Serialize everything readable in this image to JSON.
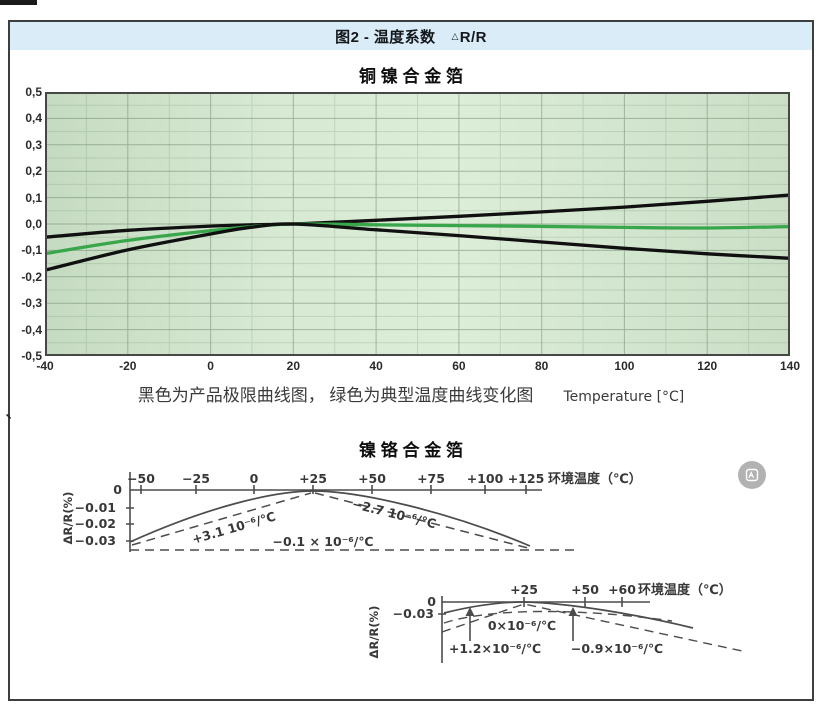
{
  "page": {
    "stray_mark": "、"
  },
  "header": {
    "title_prefix": "图2 - 温度系数",
    "delta": "△",
    "ratio": "R/R",
    "bg_color": "#d9ecf7"
  },
  "colors": {
    "panel_border": "#3e3e3e",
    "plot_green_bg": "#d6e8d2",
    "curve_black": "#101010",
    "curve_green": "#3aa64b",
    "sketch_ink": "#4c4c4c"
  },
  "chart_data": [
    {
      "type": "line",
      "title": "铜 镍 合 金 箔",
      "xlabel": "Temperature [°C]",
      "ylabel": "",
      "caption": "黑色为产品极限曲线图， 绿色为典型温度曲线变化图",
      "xlim": [
        -40,
        140
      ],
      "ylim": [
        -0.5,
        0.5
      ],
      "grid": true,
      "legend": "none",
      "x_ticks": [
        -40,
        -20,
        0,
        20,
        40,
        60,
        80,
        100,
        120,
        140
      ],
      "y_ticks": [
        0.5,
        0.4,
        0.3,
        0.2,
        0.1,
        0.0,
        -0.1,
        -0.2,
        -0.3,
        -0.4,
        -0.5
      ],
      "y_tick_labels": [
        "0,5",
        "0,4",
        "0,3",
        "0,2",
        "0,1",
        "0,0",
        "-0,1",
        "-0,2",
        "-0,3",
        "-0,4",
        "-0,5"
      ],
      "series": [
        {
          "id": "upper-limit",
          "name": "产品极限曲线(上)",
          "color": "#101010",
          "x": [
            -40,
            -20,
            0,
            10,
            20,
            40,
            60,
            80,
            100,
            120,
            140
          ],
          "y": [
            -0.05,
            -0.024,
            -0.008,
            -0.003,
            0,
            0.014,
            0.029,
            0.046,
            0.064,
            0.086,
            0.11
          ]
        },
        {
          "id": "typical",
          "name": "典型温度曲线",
          "color": "#3aa64b",
          "x": [
            -40,
            -20,
            0,
            10,
            20,
            40,
            60,
            80,
            100,
            120,
            140
          ],
          "y": [
            -0.112,
            -0.062,
            -0.025,
            -0.01,
            0,
            -0.003,
            -0.006,
            -0.009,
            -0.013,
            -0.015,
            -0.01
          ]
        },
        {
          "id": "lower-limit",
          "name": "产品极限曲线(下)",
          "color": "#101010",
          "x": [
            -40,
            -20,
            0,
            10,
            20,
            40,
            60,
            80,
            100,
            120,
            140
          ],
          "y": [
            -0.175,
            -0.098,
            -0.038,
            -0.012,
            0,
            -0.022,
            -0.044,
            -0.068,
            -0.092,
            -0.113,
            -0.13
          ]
        }
      ]
    },
    {
      "type": "line",
      "title": "镍 铬 合 金 箔",
      "style": "hand-drawn sketch",
      "subcharts": [
        {
          "xlabel": "环境温度（℃）",
          "ylabel": "ΔR/R(%)",
          "x_tick_labels": [
            "−50",
            "−25",
            "0",
            "+25",
            "+50",
            "+75",
            "+100",
            "+125"
          ],
          "y_tick_labels": [
            "0",
            "−0.01",
            "−0.02",
            "−0.03"
          ],
          "annotations": [
            "+3.1  10⁻⁶/℃",
            "−2.7  10⁻⁶/℃",
            "−0.1 × 10⁻⁶/℃"
          ],
          "shape": "solid arc from (−50,−0.03) peaking at (+25,0) back down to (+125,≈−0.03); dashed chords and dashed floor at −0.03"
        },
        {
          "xlabel": "环境温度（℃）",
          "ylabel": "ΔR/R(%)",
          "x_tick_labels": [
            "+25",
            "+50",
            "+60"
          ],
          "y_tick_labels": [
            "0",
            "−0.03"
          ],
          "annotations": [
            "0×10⁻⁶/℃",
            "+1.2×10⁻⁶/℃",
            "−0.9×10⁻⁶/℃"
          ],
          "shape": "shallow solid arc peaking at (+25,0) with dashed fan lines and two upward arrows"
        }
      ]
    }
  ]
}
